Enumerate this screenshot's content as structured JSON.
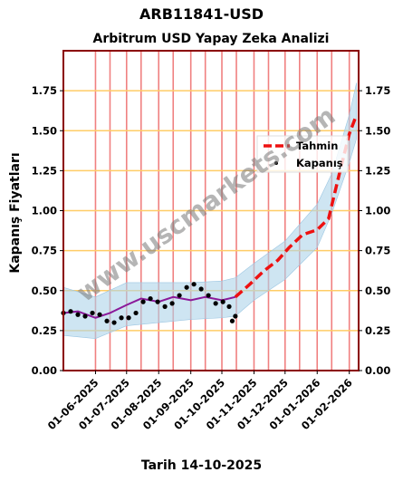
{
  "page": {
    "suptitle": "ARB11841-USD",
    "footer": "Tarih 14-10-2025",
    "watermark": "www.uscmarkets.com"
  },
  "chart_data": {
    "type": "line",
    "title": "Arbitrum USD Yapay Zeka Analizi",
    "xlabel": "",
    "ylabel": "Kapanış Fiyatları",
    "x_range": [
      "2025-05-01",
      "2026-02-10"
    ],
    "ylim": [
      0,
      2.0
    ],
    "y_ticks": [
      0.0,
      0.25,
      0.5,
      0.75,
      1.0,
      1.25,
      1.5,
      1.75
    ],
    "y_tick_labels": [
      "0.00",
      "0.25",
      "0.50",
      "0.75",
      "1.00",
      "1.25",
      "1.50",
      "1.75"
    ],
    "x_ticks": [
      "2025-06-01",
      "2025-07-01",
      "2025-08-01",
      "2025-09-01",
      "2025-10-01",
      "2025-11-01",
      "2025-12-01",
      "2026-01-01",
      "2026-02-01"
    ],
    "x_tick_labels": [
      "01-06-2025",
      "01-07-2025",
      "01-08-2025",
      "01-09-2025",
      "01-10-2025",
      "01-11-2025",
      "01-12-2025",
      "01-01-2026",
      "01-02-2026"
    ],
    "vertical_lines": [
      "2025-06-01",
      "2025-06-15",
      "2025-07-01",
      "2025-07-15",
      "2025-08-01",
      "2025-08-15",
      "2025-09-01",
      "2025-09-15",
      "2025-10-01",
      "2025-10-15",
      "2025-11-01",
      "2025-11-15",
      "2025-12-01",
      "2025-12-15",
      "2026-01-01",
      "2026-01-15",
      "2026-02-01",
      "2026-02-15"
    ],
    "grid": {
      "horizontal": true,
      "horizontal_color": "#ffcc66",
      "vertical_color": "#f08080"
    },
    "legend": {
      "position": "right",
      "entries": [
        {
          "label": "Tahmin",
          "color": "#ee1111",
          "style": "dashed-line"
        },
        {
          "label": "Kapanış",
          "color": "#000000",
          "style": "dot"
        }
      ]
    },
    "colors": {
      "band": "#aed3ea",
      "smooth": "#8b1a9a",
      "frame": "#8b0000"
    },
    "series": [
      {
        "name": "Kapanış",
        "kind": "scatter",
        "x": [
          "2025-05-01",
          "2025-05-08",
          "2025-05-15",
          "2025-05-22",
          "2025-05-29",
          "2025-06-05",
          "2025-06-12",
          "2025-06-19",
          "2025-06-26",
          "2025-07-03",
          "2025-07-10",
          "2025-07-17",
          "2025-07-24",
          "2025-07-31",
          "2025-08-07",
          "2025-08-14",
          "2025-08-21",
          "2025-08-28",
          "2025-09-04",
          "2025-09-11",
          "2025-09-18",
          "2025-09-25",
          "2025-10-02",
          "2025-10-08",
          "2025-10-11",
          "2025-10-14"
        ],
        "y": [
          0.36,
          0.37,
          0.35,
          0.34,
          0.36,
          0.35,
          0.31,
          0.3,
          0.33,
          0.33,
          0.36,
          0.43,
          0.45,
          0.43,
          0.4,
          0.42,
          0.47,
          0.52,
          0.54,
          0.51,
          0.47,
          0.42,
          0.43,
          0.4,
          0.31,
          0.34
        ]
      },
      {
        "name": "smoothed",
        "kind": "line",
        "x": [
          "2025-05-01",
          "2025-05-15",
          "2025-06-01",
          "2025-06-15",
          "2025-07-01",
          "2025-07-15",
          "2025-08-01",
          "2025-08-15",
          "2025-09-01",
          "2025-09-15",
          "2025-10-01",
          "2025-10-14"
        ],
        "y": [
          0.36,
          0.37,
          0.33,
          0.36,
          0.41,
          0.45,
          0.43,
          0.46,
          0.44,
          0.46,
          0.44,
          0.46
        ]
      },
      {
        "name": "Tahmin",
        "kind": "line",
        "x": [
          "2025-10-14",
          "2025-10-28",
          "2025-11-10",
          "2025-11-24",
          "2025-12-05",
          "2025-12-18",
          "2026-01-01",
          "2026-01-12",
          "2026-01-22",
          "2026-02-01",
          "2026-02-08"
        ],
        "y": [
          0.46,
          0.54,
          0.62,
          0.69,
          0.77,
          0.85,
          0.88,
          0.95,
          1.22,
          1.48,
          1.6
        ]
      },
      {
        "name": "band_upper",
        "kind": "band",
        "x": [
          "2025-05-01",
          "2025-06-01",
          "2025-07-01",
          "2025-08-01",
          "2025-09-01",
          "2025-10-01",
          "2025-10-14",
          "2025-11-01",
          "2025-12-01",
          "2026-01-01",
          "2026-01-15",
          "2026-02-01",
          "2026-02-08"
        ],
        "y": [
          0.52,
          0.46,
          0.55,
          0.55,
          0.55,
          0.56,
          0.58,
          0.67,
          0.81,
          1.04,
          1.23,
          1.6,
          1.8
        ]
      },
      {
        "name": "band_lower",
        "kind": "band",
        "x": [
          "2025-05-01",
          "2025-06-01",
          "2025-07-01",
          "2025-08-01",
          "2025-09-01",
          "2025-10-01",
          "2025-10-14",
          "2025-11-01",
          "2025-12-01",
          "2026-01-01",
          "2026-01-15",
          "2026-02-01",
          "2026-02-08"
        ],
        "y": [
          0.22,
          0.2,
          0.28,
          0.3,
          0.32,
          0.33,
          0.34,
          0.44,
          0.57,
          0.77,
          0.98,
          1.3,
          1.45
        ]
      }
    ]
  }
}
